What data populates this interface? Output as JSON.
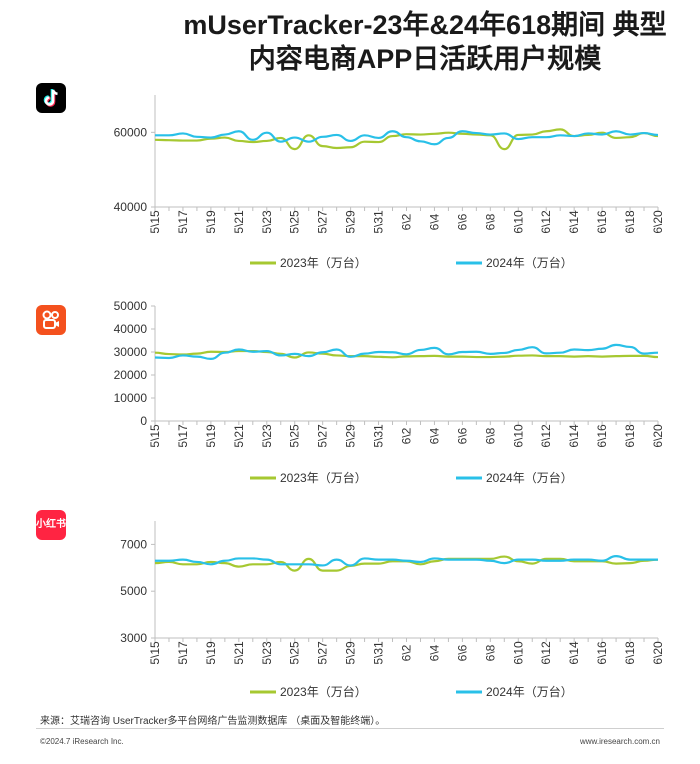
{
  "title": {
    "line1": "mUserTracker-23年&24年618期间 典型",
    "line2": "内容电商APP日活跃用户规模"
  },
  "apps": {
    "xhs_logo_text": "小红书"
  },
  "colors": {
    "series_2023": "#a6c831",
    "series_2024": "#29c0e8",
    "axis": "#bfbfbf"
  },
  "chart_data": [
    {
      "type": "line",
      "app_icon": "douyin-icon",
      "x": [
        "5\\15",
        "5\\16",
        "5\\17",
        "5\\18",
        "5\\19",
        "5\\20",
        "5\\21",
        "5\\22",
        "5\\23",
        "5\\24",
        "5\\25",
        "5\\26",
        "5\\27",
        "5\\28",
        "5\\29",
        "5\\30",
        "5\\31",
        "6\\1",
        "6\\2",
        "6\\3",
        "6\\4",
        "6\\5",
        "6\\6",
        "6\\7",
        "6\\8",
        "6\\9",
        "6\\10",
        "6\\11",
        "6\\12",
        "6\\13",
        "6\\14",
        "6\\15",
        "6\\16",
        "6\\17",
        "6\\18",
        "6\\19",
        "6\\20"
      ],
      "tick_labels": [
        "5\\15",
        "5\\17",
        "5\\19",
        "5\\21",
        "5\\23",
        "5\\25",
        "5\\27",
        "5\\29",
        "5\\31",
        "6\\2",
        "6\\4",
        "6\\6",
        "6\\8",
        "6\\10",
        "6\\12",
        "6\\14",
        "6\\16",
        "6\\18",
        "6\\20"
      ],
      "yticks": [
        40000,
        60000
      ],
      "ylim": [
        40000,
        70000
      ],
      "series": [
        {
          "name": "2023年（万台）",
          "values": [
            58000,
            57900,
            57800,
            57800,
            58300,
            58600,
            57700,
            57400,
            57700,
            58500,
            55500,
            59200,
            56300,
            55800,
            56000,
            57500,
            57400,
            59000,
            59500,
            59400,
            59600,
            59900,
            59600,
            59400,
            59200,
            55500,
            59300,
            59400,
            60300,
            60800,
            59000,
            59300,
            59900,
            58500,
            58700,
            59800,
            59000
          ]
        },
        {
          "name": "2024年（万台）",
          "values": [
            59200,
            59200,
            59700,
            58800,
            58600,
            59400,
            60300,
            58000,
            59900,
            57500,
            58600,
            57500,
            58800,
            59300,
            57700,
            59200,
            58500,
            60300,
            58700,
            57600,
            56800,
            58500,
            60300,
            59800,
            59400,
            59700,
            58200,
            58700,
            58700,
            59200,
            59000,
            59700,
            59400,
            60300,
            59400,
            59800,
            59300
          ]
        }
      ]
    },
    {
      "type": "line",
      "app_icon": "kuaishou-icon",
      "x": [
        "5\\15",
        "5\\16",
        "5\\17",
        "5\\18",
        "5\\19",
        "5\\20",
        "5\\21",
        "5\\22",
        "5\\23",
        "5\\24",
        "5\\25",
        "5\\26",
        "5\\27",
        "5\\28",
        "5\\29",
        "5\\30",
        "5\\31",
        "6\\1",
        "6\\2",
        "6\\3",
        "6\\4",
        "6\\5",
        "6\\6",
        "6\\7",
        "6\\8",
        "6\\9",
        "6\\10",
        "6\\11",
        "6\\12",
        "6\\13",
        "6\\14",
        "6\\15",
        "6\\16",
        "6\\17",
        "6\\18",
        "6\\19",
        "6\\20"
      ],
      "tick_labels": [
        "5\\15",
        "5\\17",
        "5\\19",
        "5\\21",
        "5\\23",
        "5\\25",
        "5\\27",
        "5\\29",
        "5\\31",
        "6\\2",
        "6\\4",
        "6\\6",
        "6\\8",
        "6\\10",
        "6\\12",
        "6\\14",
        "6\\16",
        "6\\18",
        "6\\20"
      ],
      "yticks": [
        0,
        10000,
        20000,
        30000,
        40000,
        50000
      ],
      "ylim": [
        0,
        50000
      ],
      "series": [
        {
          "name": "2023年（万台）",
          "values": [
            29700,
            29100,
            28900,
            29300,
            30100,
            30000,
            30400,
            30400,
            30000,
            29200,
            27600,
            29800,
            29300,
            28500,
            28200,
            28200,
            27900,
            27700,
            28100,
            28200,
            28300,
            28000,
            28000,
            27800,
            27800,
            28000,
            28400,
            28500,
            28200,
            28200,
            28000,
            28200,
            28000,
            28200,
            28300,
            28300,
            27800
          ]
        },
        {
          "name": "2024年（万台）",
          "values": [
            27600,
            27400,
            28500,
            28000,
            27000,
            29700,
            31100,
            30100,
            30400,
            28500,
            29200,
            28200,
            29900,
            31100,
            27900,
            29300,
            30000,
            29900,
            29000,
            30900,
            31800,
            29000,
            30000,
            30100,
            29200,
            29600,
            30900,
            32100,
            29400,
            29700,
            31100,
            30800,
            31400,
            33100,
            32200,
            29300,
            29700
          ]
        }
      ]
    },
    {
      "type": "line",
      "app_icon": "xiaohongshu-icon",
      "x": [
        "5\\15",
        "5\\16",
        "5\\17",
        "5\\18",
        "5\\19",
        "5\\20",
        "5\\21",
        "5\\22",
        "5\\23",
        "5\\24",
        "5\\25",
        "5\\26",
        "5\\27",
        "5\\28",
        "5\\29",
        "5\\30",
        "5\\31",
        "6\\1",
        "6\\2",
        "6\\3",
        "6\\4",
        "6\\5",
        "6\\6",
        "6\\7",
        "6\\8",
        "6\\9",
        "6\\10",
        "6\\11",
        "6\\12",
        "6\\13",
        "6\\14",
        "6\\15",
        "6\\16",
        "6\\17",
        "6\\18",
        "6\\19",
        "6\\20"
      ],
      "tick_labels": [
        "5\\15",
        "5\\17",
        "5\\19",
        "5\\21",
        "5\\23",
        "5\\25",
        "5\\27",
        "5\\29",
        "5\\31",
        "6\\2",
        "6\\4",
        "6\\6",
        "6\\8",
        "6\\10",
        "6\\12",
        "6\\14",
        "6\\16",
        "6\\18",
        "6\\20"
      ],
      "yticks": [
        3000,
        5000,
        7000
      ],
      "ylim": [
        3000,
        8000
      ],
      "series": [
        {
          "name": "2023年（万台）",
          "values": [
            6200,
            6250,
            6150,
            6150,
            6250,
            6200,
            6050,
            6150,
            6150,
            6250,
            5880,
            6380,
            5880,
            5880,
            6080,
            6180,
            6180,
            6280,
            6280,
            6150,
            6280,
            6380,
            6380,
            6380,
            6380,
            6480,
            6280,
            6180,
            6380,
            6380,
            6280,
            6280,
            6280,
            6180,
            6200,
            6300,
            6350
          ]
        },
        {
          "name": "2024年（万台）",
          "values": [
            6300,
            6300,
            6350,
            6250,
            6150,
            6300,
            6400,
            6400,
            6350,
            6150,
            6150,
            6150,
            6100,
            6350,
            6100,
            6400,
            6350,
            6350,
            6300,
            6250,
            6400,
            6350,
            6350,
            6350,
            6300,
            6200,
            6350,
            6350,
            6300,
            6300,
            6350,
            6350,
            6300,
            6500,
            6350,
            6350,
            6350
          ]
        }
      ]
    }
  ],
  "footer": {
    "source": "来源：艾瑞咨询 UserTracker多平台网络广告监测数据库 （桌面及智能终端）。",
    "copyright": "©2024.7 iResearch Inc.",
    "website": "www.iresearch.com.cn"
  }
}
